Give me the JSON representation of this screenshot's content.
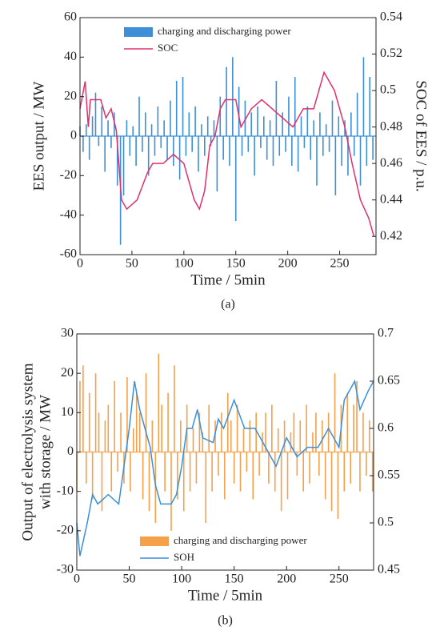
{
  "chart_data": [
    {
      "type": "bar_line",
      "panel_label": "(a)",
      "xlabel": "Time / 5min",
      "ylabel": [
        "EES output / MW"
      ],
      "y2label": "SOC of EES / p.u.",
      "xlim": [
        0,
        285
      ],
      "xticks": [
        0,
        50,
        100,
        150,
        200,
        250
      ],
      "ylim": [
        -60,
        60
      ],
      "yticks": [
        -60,
        -40,
        -20,
        0,
        20,
        40,
        60
      ],
      "y2lim": [
        0.41,
        0.54
      ],
      "y2ticks": [
        0.42,
        0.44,
        0.46,
        0.48,
        0.5,
        0.52,
        0.54
      ],
      "series": [
        {
          "name": "charging and discharging power",
          "color": "#3d8fd6",
          "type": "bar",
          "x": [
            0,
            3,
            6,
            9,
            12,
            15,
            18,
            21,
            24,
            27,
            30,
            33,
            36,
            39,
            42,
            45,
            48,
            51,
            54,
            57,
            60,
            63,
            66,
            69,
            72,
            75,
            78,
            81,
            84,
            87,
            90,
            93,
            96,
            99,
            102,
            105,
            108,
            111,
            114,
            117,
            120,
            123,
            126,
            129,
            132,
            135,
            138,
            141,
            144,
            147,
            150,
            153,
            156,
            159,
            162,
            165,
            168,
            171,
            174,
            177,
            180,
            183,
            186,
            189,
            192,
            195,
            198,
            201,
            204,
            207,
            210,
            213,
            216,
            219,
            222,
            225,
            228,
            231,
            234,
            237,
            240,
            243,
            246,
            249,
            252,
            255,
            258,
            261,
            264,
            267,
            270,
            273,
            276,
            279,
            282
          ],
          "values": [
            5,
            -8,
            6,
            -12,
            10,
            22,
            -5,
            15,
            -18,
            8,
            -6,
            12,
            -25,
            -55,
            -30,
            8,
            -10,
            5,
            -15,
            20,
            -8,
            12,
            -20,
            6,
            -10,
            15,
            -6,
            8,
            -12,
            18,
            -15,
            28,
            -22,
            30,
            -10,
            12,
            -8,
            15,
            -18,
            6,
            -10,
            10,
            -5,
            8,
            -28,
            20,
            -12,
            35,
            -15,
            40,
            -43,
            25,
            -10,
            18,
            -8,
            12,
            -20,
            15,
            -6,
            10,
            -12,
            8,
            -15,
            28,
            -10,
            12,
            -8,
            20,
            -15,
            30,
            -18,
            10,
            -6,
            15,
            -12,
            8,
            -25,
            12,
            -10,
            6,
            -8,
            18,
            -30,
            10,
            -15,
            8,
            -20,
            12,
            -10,
            22,
            -25,
            40,
            -15,
            30,
            -12
          ]
        },
        {
          "name": "SOC",
          "color": "#e0306a",
          "type": "line",
          "axis": "y2",
          "x": [
            0,
            5,
            8,
            10,
            20,
            25,
            30,
            35,
            40,
            45,
            55,
            65,
            70,
            80,
            90,
            100,
            110,
            115,
            120,
            125,
            130,
            135,
            140,
            150,
            155,
            165,
            175,
            185,
            195,
            205,
            215,
            225,
            235,
            245,
            255,
            262,
            270,
            278,
            283
          ],
          "values": [
            0.49,
            0.505,
            0.48,
            0.495,
            0.495,
            0.485,
            0.49,
            0.478,
            0.44,
            0.435,
            0.44,
            0.455,
            0.46,
            0.46,
            0.465,
            0.46,
            0.44,
            0.435,
            0.445,
            0.47,
            0.475,
            0.49,
            0.495,
            0.495,
            0.48,
            0.49,
            0.495,
            0.49,
            0.485,
            0.48,
            0.49,
            0.49,
            0.51,
            0.5,
            0.48,
            0.46,
            0.44,
            0.43,
            0.42
          ]
        }
      ]
    },
    {
      "type": "bar_line",
      "panel_label": "(b)",
      "xlabel": "Time / 5min",
      "ylabel": [
        "Output of electrolysis system",
        "with storage / MW"
      ],
      "y2label": "",
      "xlim": [
        0,
        283
      ],
      "xticks": [
        0,
        50,
        100,
        150,
        200,
        250
      ],
      "ylim": [
        -30,
        30
      ],
      "yticks": [
        -30,
        -20,
        -10,
        0,
        10,
        20,
        30
      ],
      "y2lim": [
        0.45,
        0.7
      ],
      "y2ticks": [
        0.45,
        0.5,
        0.55,
        0.6,
        0.65,
        0.7
      ],
      "series": [
        {
          "name": "charging and discharging power",
          "color": "#f5a04a",
          "type": "bar",
          "x": [
            0,
            3,
            6,
            9,
            12,
            15,
            18,
            21,
            24,
            27,
            30,
            33,
            36,
            39,
            42,
            45,
            48,
            51,
            54,
            57,
            60,
            63,
            66,
            69,
            72,
            75,
            78,
            81,
            84,
            87,
            90,
            93,
            96,
            99,
            102,
            105,
            108,
            111,
            114,
            117,
            120,
            123,
            126,
            129,
            132,
            135,
            138,
            141,
            144,
            147,
            150,
            153,
            156,
            159,
            162,
            165,
            168,
            171,
            174,
            177,
            180,
            183,
            186,
            189,
            192,
            195,
            198,
            201,
            204,
            207,
            210,
            213,
            216,
            219,
            222,
            225,
            228,
            231,
            234,
            237,
            240,
            243,
            246,
            249,
            252,
            255,
            258,
            261,
            264,
            267,
            270,
            273,
            276,
            279,
            282
          ],
          "values": [
            -10,
            18,
            22,
            -8,
            15,
            -12,
            20,
            10,
            -15,
            8,
            12,
            -10,
            18,
            -5,
            10,
            -8,
            19,
            -10,
            6,
            15,
            10,
            -12,
            20,
            -15,
            8,
            -18,
            25,
            12,
            -10,
            15,
            -20,
            22,
            -12,
            8,
            -15,
            12,
            -10,
            6,
            -8,
            10,
            5,
            -18,
            12,
            -10,
            8,
            -6,
            10,
            -12,
            15,
            8,
            -8,
            12,
            -10,
            6,
            -5,
            8,
            -12,
            10,
            -6,
            5,
            10,
            -8,
            12,
            -10,
            6,
            -15,
            8,
            -12,
            5,
            10,
            -6,
            8,
            -10,
            12,
            -8,
            5,
            10,
            -6,
            8,
            -12,
            10,
            -15,
            20,
            -17,
            12,
            -10,
            15,
            -8,
            12,
            18,
            -10,
            10,
            -6,
            8,
            -10
          ]
        },
        {
          "name": "SOH",
          "color": "#3a8fd9",
          "type": "line",
          "axis": "y2",
          "x": [
            0,
            3,
            10,
            15,
            20,
            30,
            40,
            45,
            50,
            55,
            60,
            65,
            70,
            75,
            80,
            90,
            95,
            100,
            105,
            110,
            115,
            120,
            130,
            135,
            140,
            150,
            160,
            170,
            180,
            190,
            200,
            210,
            220,
            230,
            240,
            250,
            255,
            265,
            270,
            278,
            283
          ],
          "values": [
            0.5,
            0.465,
            0.5,
            0.53,
            0.52,
            0.53,
            0.52,
            0.56,
            0.6,
            0.65,
            0.62,
            0.6,
            0.58,
            0.54,
            0.52,
            0.52,
            0.53,
            0.56,
            0.6,
            0.6,
            0.62,
            0.59,
            0.585,
            0.61,
            0.6,
            0.63,
            0.6,
            0.6,
            0.58,
            0.56,
            0.59,
            0.57,
            0.58,
            0.58,
            0.6,
            0.58,
            0.63,
            0.65,
            0.62,
            0.64,
            0.65
          ]
        }
      ]
    }
  ]
}
